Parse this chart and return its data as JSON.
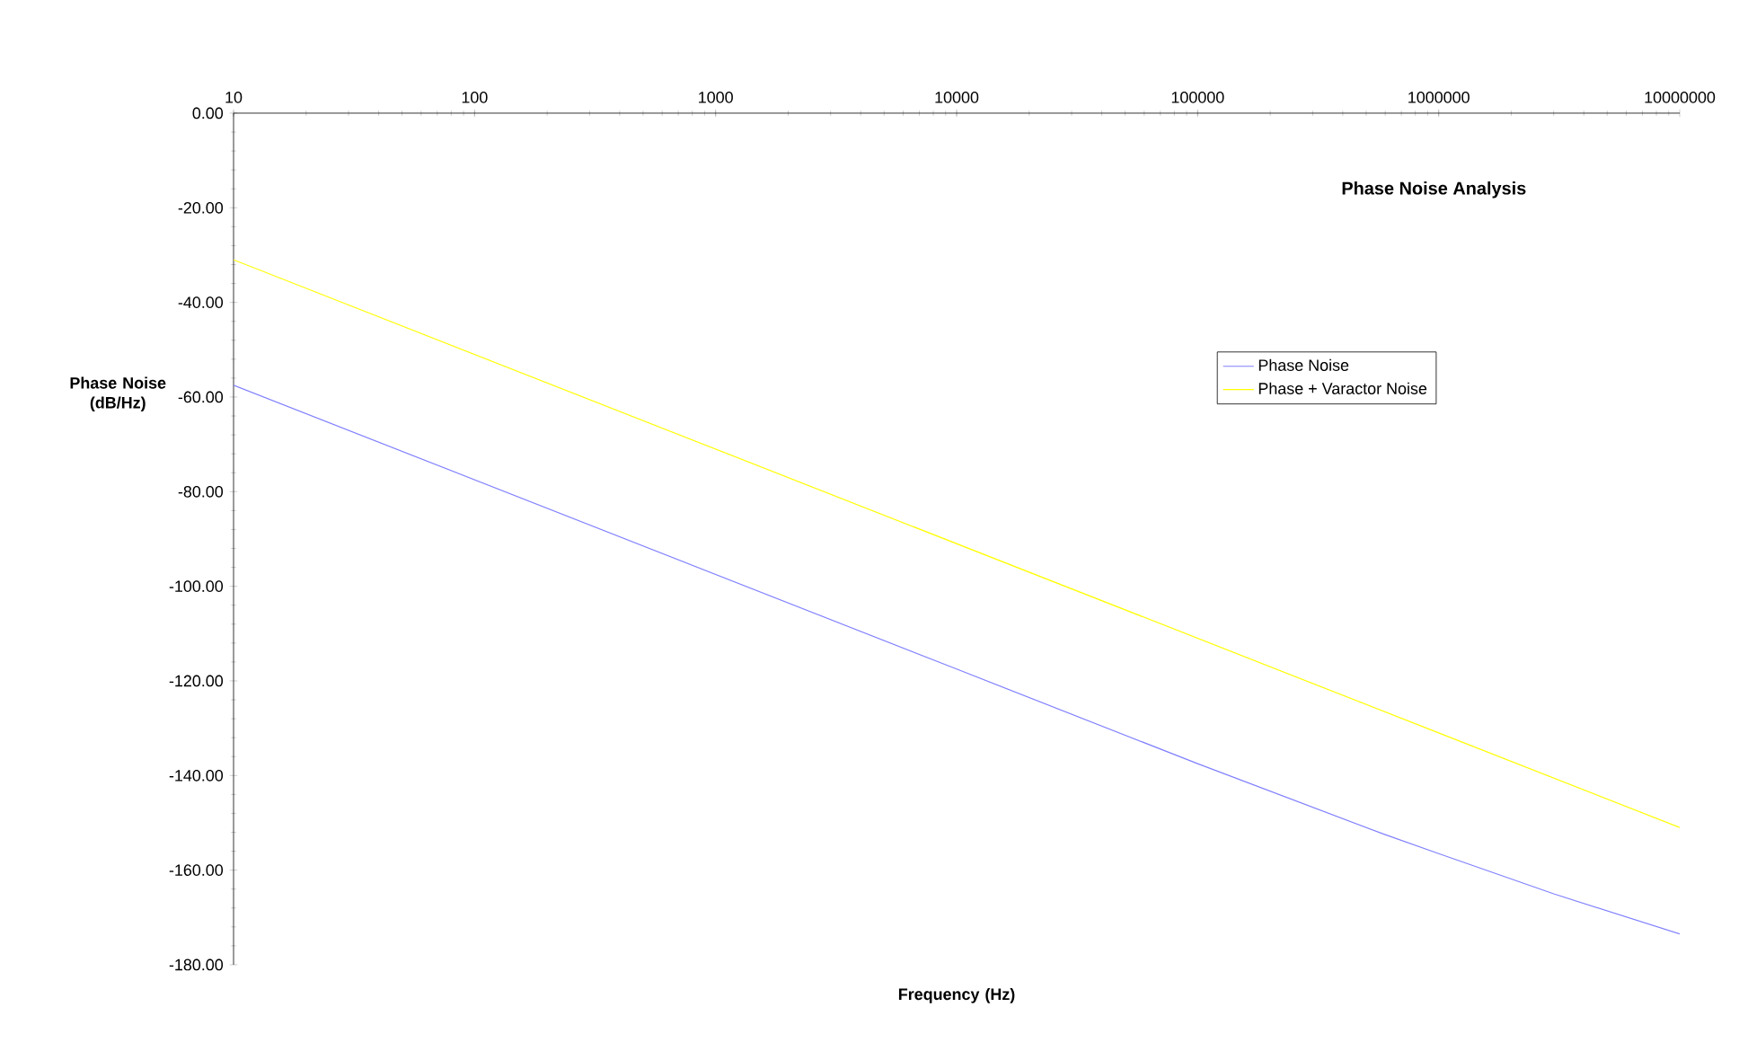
{
  "chart_data": {
    "type": "line",
    "title": "Phase Noise Analysis",
    "xlabel": "Frequency (Hz)",
    "ylabel": "Phase Noise (dB/Hz)",
    "log": "x",
    "xlim": [
      10,
      10000000
    ],
    "xticks": [
      10,
      100,
      1000,
      10000,
      100000,
      1000000,
      10000000
    ],
    "ylim": [
      -180,
      0
    ],
    "yticks": [
      {
        "value": 0,
        "label": "0.00"
      },
      {
        "value": -20,
        "label": "-20.00"
      },
      {
        "value": -40,
        "label": "-40.00"
      },
      {
        "value": -60,
        "label": "-60.00"
      },
      {
        "value": -80,
        "label": "-80.00"
      },
      {
        "value": -100,
        "label": "-100.00"
      },
      {
        "value": -120,
        "label": "-120.00"
      },
      {
        "value": -140,
        "label": "-140.00"
      },
      {
        "value": -160,
        "label": "-160.00"
      },
      {
        "value": -180,
        "label": "-180.00"
      }
    ],
    "legend": "right",
    "marker": "none",
    "line_style": "solid",
    "grid": false,
    "series": [
      {
        "name": "Phase Noise",
        "color": "#8080ff",
        "x": [
          10,
          100,
          1000,
          10000,
          100000,
          600000,
          1000000,
          3000000,
          10000000
        ],
        "values": [
          -57.5,
          -77.5,
          -97.5,
          -117.5,
          -137.5,
          -152.5,
          -156.5,
          -165,
          -173.5
        ]
      },
      {
        "name": "Phase + Varactor Noise",
        "color": "#ffff00",
        "x": [
          10,
          100,
          1000,
          10000,
          100000,
          1000000,
          10000000
        ],
        "values": [
          -31,
          -51,
          -71,
          -91,
          -111,
          -131,
          -151
        ]
      }
    ]
  }
}
